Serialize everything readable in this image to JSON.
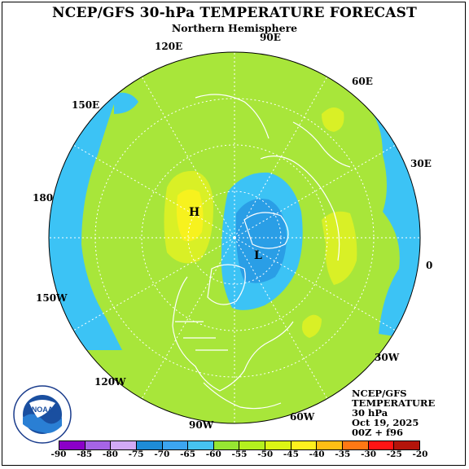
{
  "title": "NCEP/GFS 30-hPa TEMPERATURE FORECAST",
  "subtitle": "Northern Hemisphere",
  "longitude_labels": {
    "90E": "90E",
    "120E": "120E",
    "60E": "60E",
    "150E": "150E",
    "30E": "30E",
    "180": "180",
    "0": "0",
    "150W": "150W",
    "30W": "30W",
    "120W": "120W",
    "60W": "60W",
    "90W": "90W"
  },
  "high_marker": "H",
  "low_marker": "L",
  "info": {
    "line1": "NCEP/GFS",
    "line2": "TEMPERATURE",
    "line3": "30 hPa",
    "line4": "Oct 19, 2025",
    "line5": "00Z + f96"
  },
  "logo_text": "NOAA",
  "colorbar": {
    "ticks": [
      "-90",
      "-85",
      "-80",
      "-75",
      "-70",
      "-65",
      "-60",
      "-55",
      "-50",
      "-45",
      "-40",
      "-35",
      "-30",
      "-25",
      "-20"
    ],
    "colors": [
      "#8b00c8",
      "#a664e6",
      "#d2aaf5",
      "#1e8cd7",
      "#3ca5f0",
      "#46c3f0",
      "#96e632",
      "#b4f01e",
      "#dcf514",
      "#fff01e",
      "#ffbe14",
      "#ff7814",
      "#ff1414",
      "#b4140a",
      "#785028"
    ]
  },
  "colors": {
    "light_green": "#a8e63a",
    "yellow_green": "#d9f026",
    "yellow": "#f7f21e",
    "cyan": "#3cc3f5",
    "blue": "#2a9ee6",
    "dark_blue": "#1e8cd7"
  }
}
